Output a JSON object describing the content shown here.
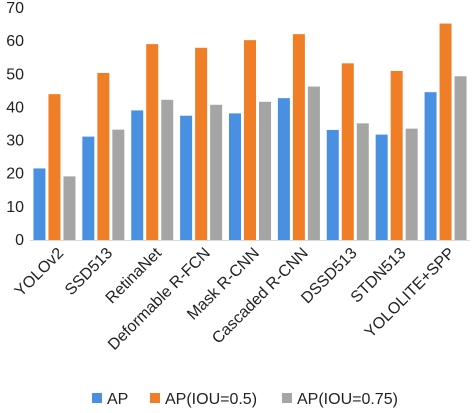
{
  "chart_data": {
    "type": "bar",
    "categories": [
      "YOLOv2",
      "SSD513",
      "RetinaNet",
      "Deformable R-FCN",
      "Mask R-CNN",
      "Cascaded R-CNN",
      "DSSD513",
      "STDN513",
      "YOLOLITE+SPP"
    ],
    "series": [
      {
        "name": "AP",
        "color": "#4a90e2",
        "values": [
          21.6,
          31.2,
          39.1,
          37.5,
          38.2,
          42.8,
          33.2,
          31.8,
          44.6
        ]
      },
      {
        "name": "AP(IOU=0.5)",
        "color": "#f07e26",
        "values": [
          44.0,
          50.4,
          59.1,
          58.0,
          60.3,
          62.1,
          53.3,
          51.0,
          65.3
        ]
      },
      {
        "name": "AP(IOU=0.75)",
        "color": "#a5a5a5",
        "values": [
          19.2,
          33.3,
          42.3,
          40.8,
          41.7,
          46.3,
          35.2,
          33.6,
          49.4
        ]
      }
    ],
    "ylim": [
      0,
      70
    ],
    "yticks": [
      "0",
      "10",
      "20",
      "30",
      "40",
      "50",
      "60",
      "70"
    ],
    "grid": false,
    "legend_position": "bottom"
  }
}
